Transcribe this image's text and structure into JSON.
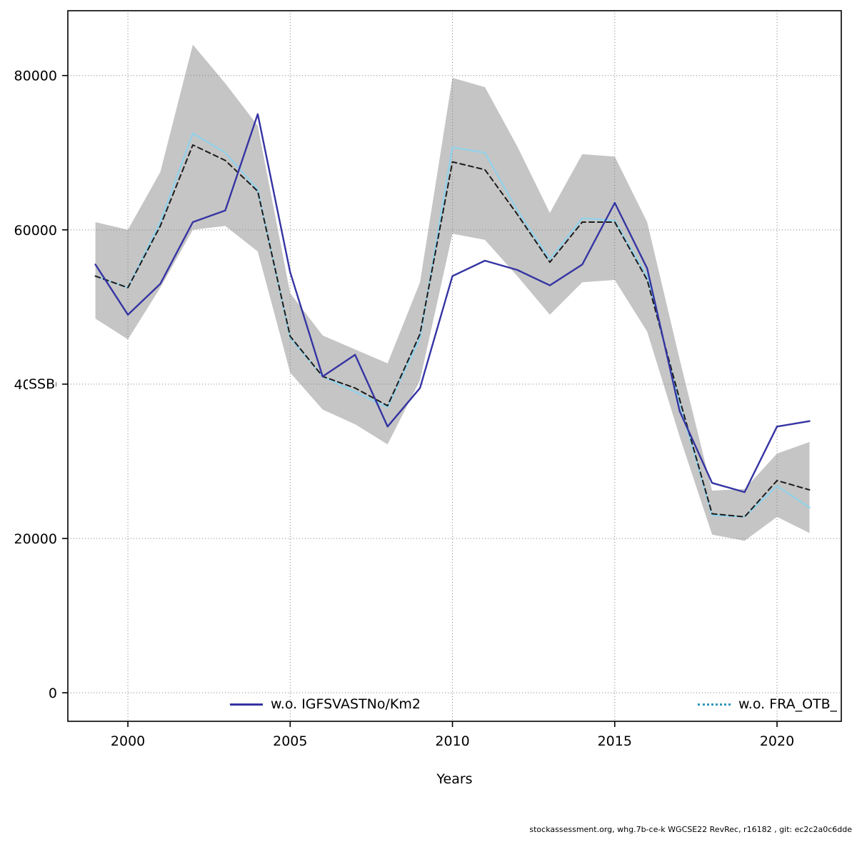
{
  "chart_data": {
    "type": "line",
    "xlabel": "Years",
    "ylabel": "SSB",
    "x_range": [
      1998.15,
      2021.98
    ],
    "y_range": [
      -3700,
      88400
    ],
    "x_ticks": [
      2000,
      2005,
      2010,
      2015,
      2020
    ],
    "y_ticks": [
      0,
      20000,
      40000,
      60000,
      80000
    ],
    "grid": true,
    "grid_color": "#7f7f7f",
    "years": [
      1999,
      2000,
      2001,
      2002,
      2003,
      2004,
      2005,
      2006,
      2007,
      2008,
      2009,
      2010,
      2011,
      2012,
      2013,
      2014,
      2015,
      2016,
      2017,
      2018,
      2019,
      2020,
      2021
    ],
    "band": {
      "color": "#c5c5c5",
      "lower": [
        48500,
        45800,
        52500,
        60000,
        60500,
        57200,
        41500,
        36700,
        34800,
        32200,
        40500,
        59500,
        58700,
        54000,
        49000,
        53200,
        53500,
        46800,
        33200,
        20500,
        19700,
        22800,
        20700
      ],
      "upper": [
        61000,
        60000,
        67500,
        84000,
        79000,
        73500,
        51800,
        46300,
        44500,
        42700,
        53200,
        79700,
        78500,
        70800,
        62200,
        69800,
        69500,
        61000,
        43200,
        26200,
        26400,
        31000,
        32500
      ]
    },
    "series": [
      {
        "id": "central-estimate",
        "label": "",
        "color": "#1c1c1c",
        "style": "dashed",
        "width": 2,
        "values": [
          54000,
          52500,
          60500,
          71000,
          69000,
          65000,
          46200,
          41000,
          39500,
          37200,
          46500,
          68800,
          67800,
          62000,
          55800,
          61000,
          61000,
          53500,
          38000,
          23200,
          22800,
          27500,
          26300
        ]
      },
      {
        "id": "wo-igfsvastno-km2",
        "label": "w.o. IGFSVASTNo/Km2",
        "color": "#3534a3",
        "style": "solid",
        "width": 2.4,
        "values": [
          55500,
          49000,
          53000,
          61000,
          62500,
          75000,
          54500,
          41000,
          43800,
          34500,
          39500,
          54000,
          56000,
          54800,
          52800,
          55500,
          63500,
          55000,
          36500,
          27200,
          26000,
          34500,
          35200
        ]
      },
      {
        "id": "wo-fra-otb",
        "label": "w.o. FRA_OTB_",
        "color": "#90d2ec",
        "style": "solid",
        "width": 2.2,
        "legend_style": "dotted",
        "legend_color": "#2f96ba",
        "values": [
          54000,
          52500,
          61000,
          72500,
          70000,
          65200,
          46000,
          41000,
          39000,
          37000,
          46000,
          70700,
          70000,
          62500,
          56200,
          61500,
          61200,
          54000,
          37500,
          23000,
          22800,
          26800,
          24000
        ]
      }
    ],
    "draw_order": [
      2,
      0,
      1
    ]
  },
  "footer": "stockassessment.org, whg.7b-ce-k WGCSE22 RevRec, r16182 , git: ec2c2a0c6dde"
}
